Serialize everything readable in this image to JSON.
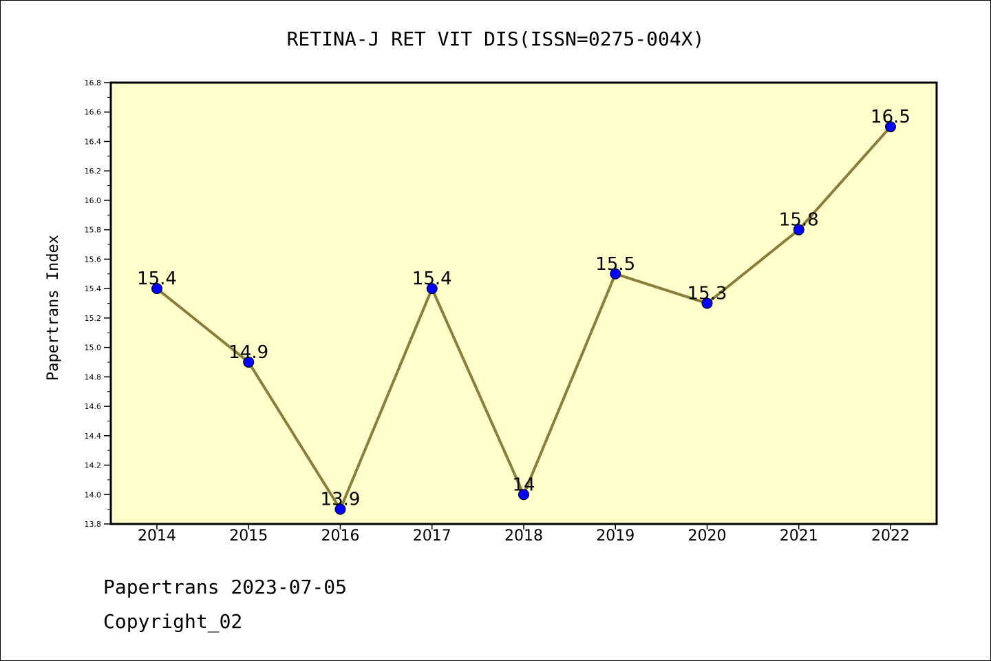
{
  "chart_data": {
    "type": "line",
    "title": "RETINA-J RET VIT DIS(ISSN=0275-004X)",
    "ylabel": "Papertrans Index",
    "xlabel": "",
    "categories": [
      "2014",
      "2015",
      "2016",
      "2017",
      "2018",
      "2019",
      "2020",
      "2021",
      "2022"
    ],
    "series": [
      {
        "values": [
          15.4,
          14.9,
          13.9,
          15.4,
          14.0,
          15.5,
          15.3,
          15.8,
          16.5
        ],
        "labels": [
          "15.4",
          "14.9",
          "13.9",
          "15.4",
          "14",
          "15.5",
          "15.3",
          "15.8",
          "16.5"
        ]
      }
    ],
    "ylim": [
      13.8,
      16.8
    ],
    "yticks": [
      "13.8",
      "14.0",
      "14.2",
      "14.4",
      "14.6",
      "14.8",
      "15.0",
      "15.2",
      "15.4",
      "15.6",
      "15.8",
      "16.0",
      "16.2",
      "16.4",
      "16.6",
      "16.8"
    ],
    "grid": false,
    "colors": {
      "plot_background": "#ffffcc",
      "line": "#8b7d3a",
      "marker": "#0000ff"
    }
  },
  "footer": {
    "line1": "Papertrans 2023-07-05",
    "line2": "Copyright_02"
  }
}
